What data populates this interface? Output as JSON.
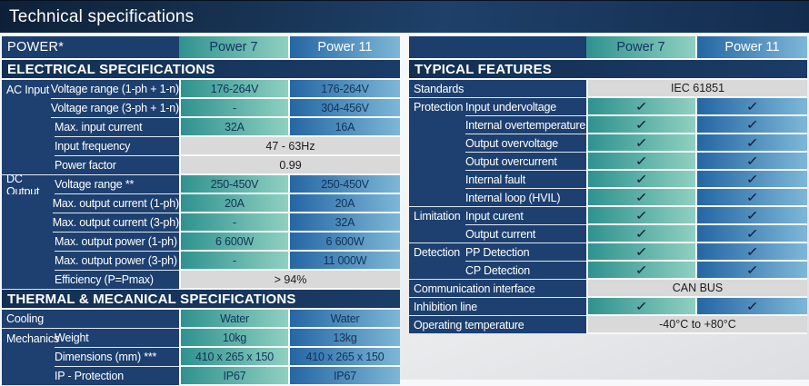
{
  "title": "Technical specifications",
  "icons": {
    "check": "✓"
  },
  "colors": {
    "navy_dark": "#132f52",
    "navy_label": "#1d4070",
    "teal_gradient_start": "#2f928f",
    "teal_gradient_end": "#8fd0c1",
    "blue_gradient_start": "#2566a4",
    "blue_gradient_end": "#7db7d7",
    "gray_span": "#d9d9da"
  },
  "left_table": {
    "header": {
      "label": "POWER*",
      "col1": "Power 7",
      "col2": "Power 11"
    },
    "sections": [
      {
        "heading": "ELECTRICAL SPECIFICATIONS",
        "rows": [
          {
            "group": "AC Input",
            "label": "Voltage range (1-ph + 1-n)",
            "v1": "176-264V",
            "v2": "176-264V"
          },
          {
            "label": "Voltage range (3-ph + 1-n)",
            "v1": "-",
            "v2": "304-456V"
          },
          {
            "label": "Max. input current",
            "v1": "32A",
            "v2": "16A"
          },
          {
            "label": "Input frequency",
            "span": "47 - 63Hz"
          },
          {
            "label": "Power factor",
            "span": "0.99"
          },
          {
            "group": "DC Output",
            "label": "Voltage range **",
            "v1": "250-450V",
            "v2": "250-450V"
          },
          {
            "label": "Max. output current (1-ph)",
            "v1": "20A",
            "v2": "20A"
          },
          {
            "label": "Max. output current (3-ph)",
            "v1": "-",
            "v2": "32A"
          },
          {
            "label": "Max. output power (1-ph)",
            "v1": "6 600W",
            "v2": "6 600W"
          },
          {
            "label": "Max. output power (3-ph)",
            "v1": "-",
            "v2": "11 000W"
          },
          {
            "label": "Efficiency (P=Pmax)",
            "span": "> 94%"
          }
        ]
      },
      {
        "heading": "THERMAL & MECANICAL SPECIFICATIONS",
        "rows": [
          {
            "full": "Cooling",
            "v1": "Water",
            "v2": "Water"
          },
          {
            "group": "Mechanics",
            "label": "Weight",
            "v1": "10kg",
            "v2": "13kg"
          },
          {
            "label": "Dimensions (mm) ***",
            "v1": "410 x 265 x 150",
            "v2": "410 x 265 x 150"
          },
          {
            "label": "IP - Protection",
            "v1": "IP67",
            "v2": "IP67"
          }
        ]
      }
    ]
  },
  "right_table": {
    "header": {
      "label": "",
      "col1": "Power 7",
      "col2": "Power 11"
    },
    "sections": [
      {
        "heading": "TYPICAL FEATURES",
        "rows": [
          {
            "full": "Standards",
            "span": "IEC 61851"
          },
          {
            "group": "Protection",
            "label": "Input undervoltage",
            "check": true
          },
          {
            "label": "Internal overtemperature",
            "check": true
          },
          {
            "label": "Output overvoltage",
            "check": true
          },
          {
            "label": "Output overcurrent",
            "check": true
          },
          {
            "label": "Internal fault",
            "check": true
          },
          {
            "label": "Internal loop (HVIL)",
            "check": true
          },
          {
            "group": "Limitation",
            "label": "Input curent",
            "check": true
          },
          {
            "label": "Output current",
            "check": true
          },
          {
            "group": "Detection",
            "label": "PP Detection",
            "check": true
          },
          {
            "label": "CP Detection",
            "check": true
          },
          {
            "full": "Communication interface",
            "span": "CAN BUS"
          },
          {
            "full": "Inhibition line",
            "check": true
          },
          {
            "full": "Operating temperature",
            "span": "-40°C to +80°C"
          }
        ]
      }
    ]
  }
}
